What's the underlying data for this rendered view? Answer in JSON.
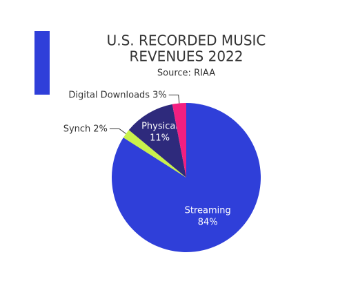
{
  "chart_data": {
    "type": "pie",
    "title": "U.S. RECORDED MUSIC",
    "title_line2": "REVENUES 2022",
    "subtitle": "Source: RIAA",
    "categories": [
      "Streaming",
      "Synch",
      "Physical",
      "Digital Downloads"
    ],
    "values": [
      84,
      2,
      11,
      3
    ],
    "value_labels": [
      "84%",
      "2%",
      "11%",
      "3%"
    ],
    "colors": [
      "#2f3fd9",
      "#c9f24b",
      "#2e2a7c",
      "#f21f80"
    ]
  }
}
